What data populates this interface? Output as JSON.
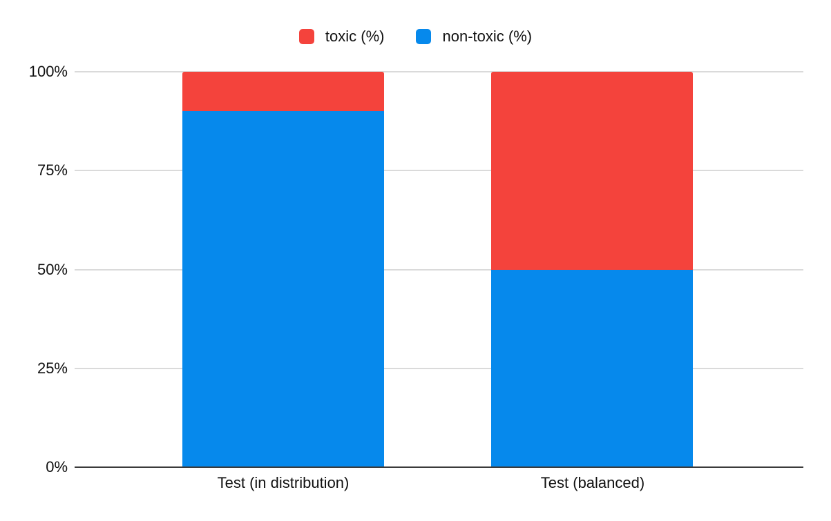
{
  "chart_data": {
    "type": "bar",
    "stacked": true,
    "title": "",
    "xlabel": "",
    "ylabel": "",
    "categories": [
      "Test (in distribution)",
      "Test (balanced)"
    ],
    "series": [
      {
        "name": "toxic (%)",
        "color": "#f4433c",
        "values": [
          10,
          50
        ]
      },
      {
        "name": "non-toxic (%)",
        "color": "#0689ec",
        "values": [
          90,
          50
        ]
      }
    ],
    "ylim": [
      0,
      100
    ],
    "yticks": [
      "0%",
      "25%",
      "50%",
      "75%",
      "100%"
    ],
    "grid": true,
    "legend_position": "top"
  }
}
